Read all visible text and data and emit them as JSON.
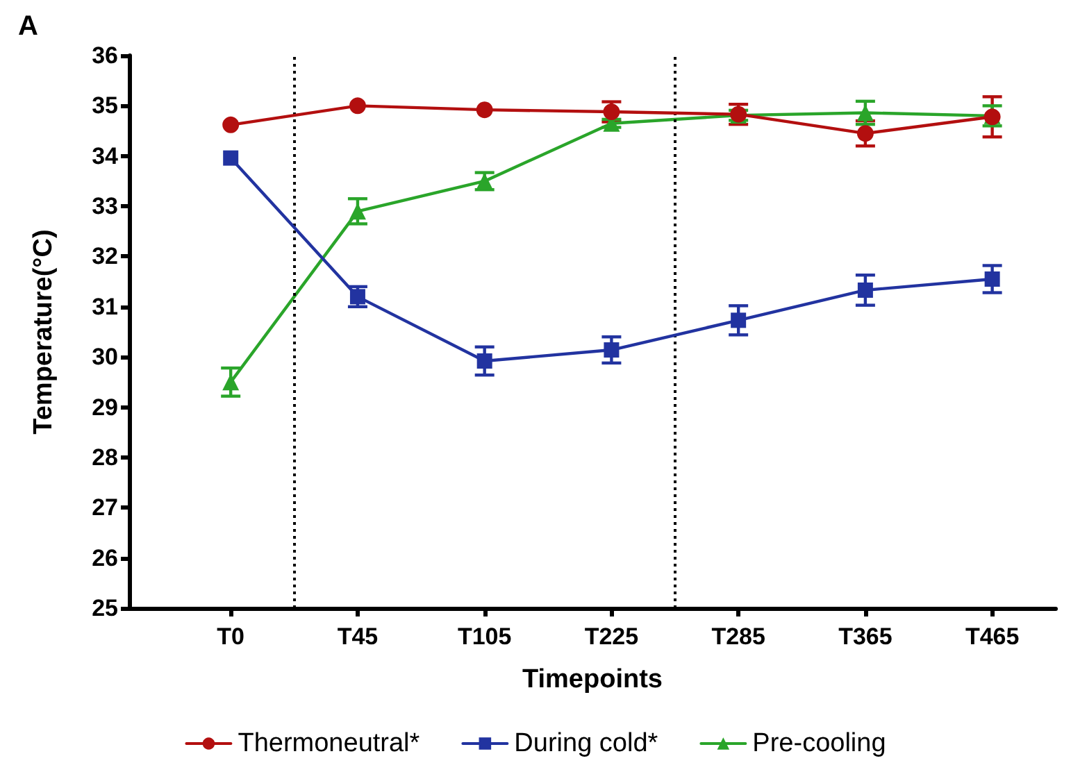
{
  "chart_data": {
    "type": "line",
    "title": "A",
    "xlabel": "Timepoints",
    "ylabel": "Temperature(°C)",
    "categories": [
      "T0",
      "T45",
      "T105",
      "T225",
      "T285",
      "T365",
      "T465"
    ],
    "ylim": [
      25,
      36
    ],
    "yticks": [
      25,
      26,
      27,
      28,
      29,
      30,
      31,
      32,
      33,
      34,
      35,
      36
    ],
    "grid": false,
    "legend": "bottom",
    "line_style": "solid",
    "series": [
      {
        "name": "Thermoneutral*",
        "color": "#b30f0f",
        "marker": "circle",
        "values": [
          34.62,
          35.0,
          34.92,
          34.88,
          34.83,
          34.45,
          34.78
        ],
        "errors": [
          null,
          null,
          null,
          0.2,
          0.2,
          0.25,
          0.4
        ]
      },
      {
        "name": "During cold*",
        "color": "#2233a0",
        "marker": "square",
        "values": [
          33.96,
          31.2,
          29.92,
          30.14,
          30.73,
          31.33,
          31.55
        ],
        "errors": [
          null,
          0.2,
          0.28,
          0.26,
          0.29,
          0.3,
          0.27
        ]
      },
      {
        "name": "Pre-cooling",
        "color": "#2aa52a",
        "marker": "triangle",
        "values": [
          29.5,
          32.9,
          33.5,
          34.65,
          34.81,
          34.86,
          34.8
        ],
        "errors": [
          0.28,
          0.25,
          0.17,
          0.08,
          0.1,
          0.23,
          0.2
        ]
      }
    ]
  }
}
